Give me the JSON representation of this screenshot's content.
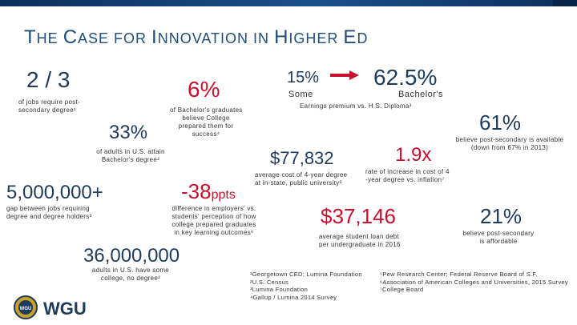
{
  "title": {
    "parts": [
      "T",
      "HE ",
      "C",
      "ASE FOR ",
      "I",
      "NNOVATION IN ",
      "H",
      "IGHER ",
      "E",
      "D"
    ]
  },
  "stats": {
    "two_thirds": {
      "value": "2 / 3",
      "caption1": "of jobs require post-",
      "caption2": "secondary degree¹"
    },
    "six_percent": {
      "value": "6%",
      "caption1": "of Bachelor's graduates",
      "caption2": "believe College",
      "caption3": "prepared them for",
      "caption4": "success⁴"
    },
    "thirty_three": {
      "value": "33%",
      "caption1": "of adults in U.S. attain",
      "caption2": "Bachelor's degree²"
    },
    "five_million": {
      "value": "5,000,000+",
      "caption1": "gap between jobs requiring",
      "caption2": "degree and degree holders³"
    },
    "minus_38": {
      "value": "-38",
      "unit": "ppts",
      "caption1": "difference in employers' vs.",
      "caption2": "students' perception of how",
      "caption3": "college prepared graduates",
      "caption4": "in key learning outcomes⁶"
    },
    "thirty_six_million": {
      "value": "36,000,000",
      "caption1": "adults in U.S. have some",
      "caption2": "college, no degree²"
    },
    "some_pct": {
      "value": "15%",
      "label": "Some"
    },
    "bachelors_pct": {
      "value": "62.5%",
      "label": "Bachelor's"
    },
    "earnings_caption": "Earnings premium vs. H.S. Diploma³",
    "sixty_one": {
      "value": "61%",
      "caption1": "believe post-secondary is available",
      "caption2": "(down from 67% in 2013)"
    },
    "avg_cost": {
      "value": "$77,832",
      "caption1": "average cost of 4-year degree",
      "caption2": "at in-state, public university³"
    },
    "rate_increase": {
      "value": "1.9x",
      "caption1": "rate of increase in cost of 4",
      "caption2": "-year degree vs. inflation⁷"
    },
    "loan_debt": {
      "value": "$37,146",
      "caption1": "average student loan debt",
      "caption2": "per undergraduate in 2016"
    },
    "twenty_one": {
      "value": "21%",
      "caption1": "believe post-secondary",
      "caption2": "is affordable"
    }
  },
  "footnotes": {
    "left": [
      "¹Georgetown CED; Lumina Foundation",
      "²U.S. Census",
      "³Lumina Foundation",
      "⁴Gallup / Lumina 2014 Survey"
    ],
    "right": [
      "⁵Pew Research Center; Federal Reserve Board of S.F.",
      "⁶Association of American Colleges and Universities, 2015 Survey",
      "⁷College Board"
    ]
  },
  "logo": {
    "text": "WGU",
    "seal_text": "WGU"
  },
  "colors": {
    "accent_red": "#c8102e",
    "navy": "#1f3b5c",
    "title_blue": "#1f4e79"
  }
}
